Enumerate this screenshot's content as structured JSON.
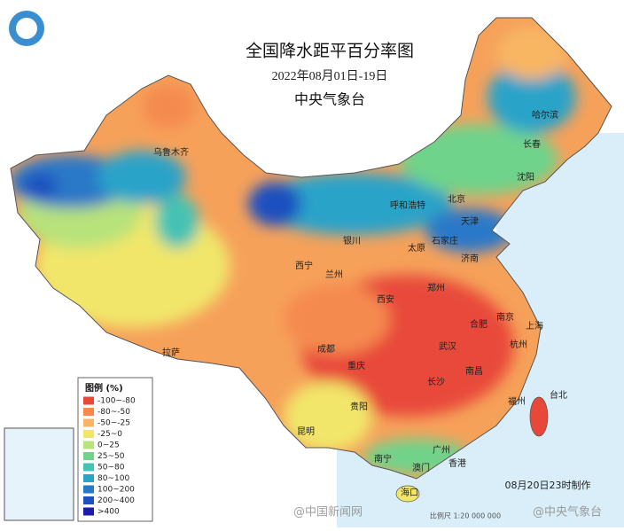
{
  "header": {
    "title": "全国降水距平百分率图",
    "period": "2022年08月01日-19日",
    "issuer": "中央气象台"
  },
  "legend": {
    "title": "图例 (%)",
    "items": [
      {
        "label": "-100~-80",
        "color": "#e8483a"
      },
      {
        "label": "-80~-50",
        "color": "#f58a4f"
      },
      {
        "label": "-50~-25",
        "color": "#f8b664"
      },
      {
        "label": "-25~0",
        "color": "#f1e66a"
      },
      {
        "label": "0~25",
        "color": "#b8e27a"
      },
      {
        "label": "25~50",
        "color": "#6fd38b"
      },
      {
        "label": "50~80",
        "color": "#45c2b4"
      },
      {
        "label": "80~100",
        "color": "#2aa3c9"
      },
      {
        "label": "100~200",
        "color": "#2a78c8"
      },
      {
        "label": "200~400",
        "color": "#1f4fc0"
      },
      {
        "label": ">400",
        "color": "#1a1ab0"
      }
    ]
  },
  "cities": [
    "乌鲁木齐",
    "哈尔滨",
    "长春",
    "沈阳",
    "北京",
    "天津",
    "呼和浩特",
    "石家庄",
    "银川",
    "太原",
    "济南",
    "西宁",
    "兰州",
    "郑州",
    "西安",
    "南京",
    "合肥",
    "上海",
    "武汉",
    "杭州",
    "成都",
    "拉萨",
    "重庆",
    "长沙",
    "南昌",
    "台北",
    "贵阳",
    "福州",
    "昆明",
    "南宁",
    "广州",
    "澳门",
    "香港",
    "海口"
  ],
  "footer": {
    "made": "08月20日23时制作",
    "scale": "比例尺 1:20 000 000",
    "watermark1": "@中国新闻网",
    "watermark2": "@中央气象台"
  }
}
